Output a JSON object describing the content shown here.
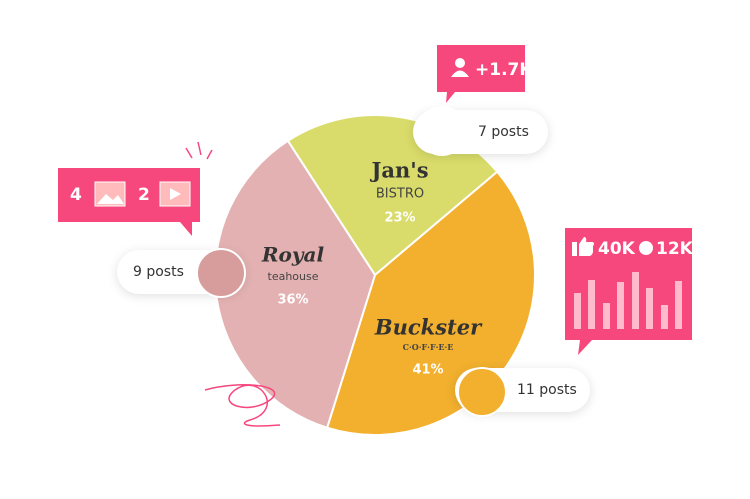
{
  "chart_data": {
    "type": "pie",
    "categories": [
      "Jan's",
      "Buckster",
      "Royal"
    ],
    "subtitles": [
      "BISTRO",
      "C·O·F·F·E·E",
      "teahouse"
    ],
    "values": [
      23,
      41,
      36
    ],
    "value_labels": [
      "23%",
      "41%",
      "36%"
    ],
    "colors": [
      "#d9dc6a",
      "#f2b02e",
      "#e3b1b1"
    ],
    "posts": [
      "7 posts",
      "11 posts",
      "9 posts"
    ]
  },
  "badges": {
    "followers": "+1.7K",
    "images": "4",
    "videos": "2",
    "likes": "40K",
    "comments": "12K"
  }
}
